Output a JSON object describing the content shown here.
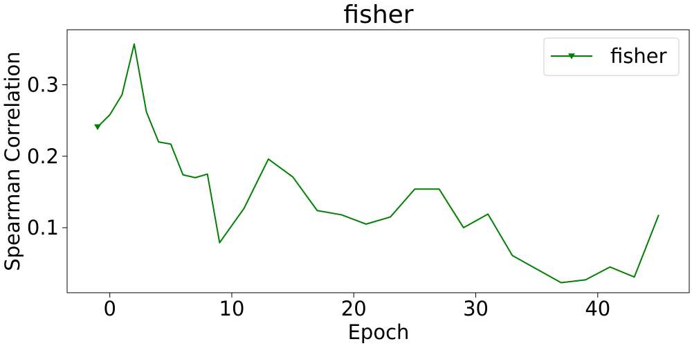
{
  "chart_data": {
    "type": "line",
    "title": "fisher",
    "xlabel": "Epoch",
    "ylabel": "Spearman Correlation",
    "xlim": [
      -3.5,
      47.5
    ],
    "ylim": [
      0.009,
      0.377
    ],
    "x_ticks": [
      0,
      10,
      20,
      30,
      40
    ],
    "x_tick_labels": [
      "0",
      "10",
      "20",
      "30",
      "40"
    ],
    "y_ticks": [
      0.1,
      0.2,
      0.3
    ],
    "y_tick_labels": [
      "0.1",
      "0.2",
      "0.3"
    ],
    "grid": false,
    "legend_position": "top-right",
    "series": [
      {
        "name": "fisher",
        "color": "#008000",
        "marker": "triangle-down",
        "marker_points": [
          {
            "x": -1,
            "y": 0.241
          }
        ],
        "points": [
          {
            "x": -1,
            "y": 0.241
          },
          {
            "x": 0,
            "y": 0.258
          },
          {
            "x": 1,
            "y": 0.286
          },
          {
            "x": 2,
            "y": 0.357
          },
          {
            "x": 3,
            "y": 0.262
          },
          {
            "x": 4,
            "y": 0.22
          },
          {
            "x": 5,
            "y": 0.217
          },
          {
            "x": 6,
            "y": 0.174
          },
          {
            "x": 7,
            "y": 0.17
          },
          {
            "x": 8,
            "y": 0.175
          },
          {
            "x": 9,
            "y": 0.079
          },
          {
            "x": 11,
            "y": 0.127
          },
          {
            "x": 13,
            "y": 0.196
          },
          {
            "x": 15,
            "y": 0.171
          },
          {
            "x": 17,
            "y": 0.124
          },
          {
            "x": 19,
            "y": 0.118
          },
          {
            "x": 21,
            "y": 0.105
          },
          {
            "x": 23,
            "y": 0.115
          },
          {
            "x": 25,
            "y": 0.154
          },
          {
            "x": 27,
            "y": 0.154
          },
          {
            "x": 29,
            "y": 0.1
          },
          {
            "x": 31,
            "y": 0.119
          },
          {
            "x": 33,
            "y": 0.061
          },
          {
            "x": 35,
            "y": 0.042
          },
          {
            "x": 37,
            "y": 0.023
          },
          {
            "x": 39,
            "y": 0.027
          },
          {
            "x": 41,
            "y": 0.045
          },
          {
            "x": 43,
            "y": 0.031
          },
          {
            "x": 45,
            "y": 0.118
          }
        ]
      }
    ]
  }
}
